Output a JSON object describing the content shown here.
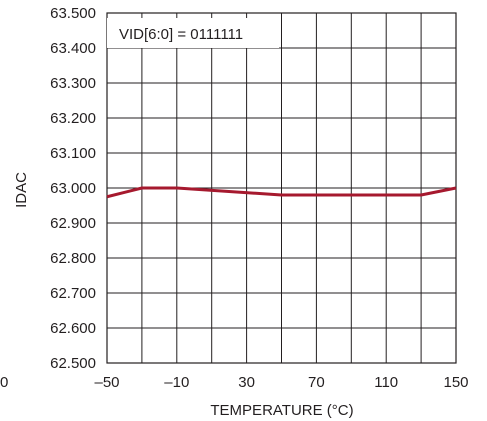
{
  "chart_data": {
    "type": "line",
    "title": "",
    "xlabel": "TEMPERATURE (°C)",
    "ylabel": "IDAC",
    "annotation": "VID[6:0] = 0111111",
    "grid": true,
    "legend": "none",
    "xlim": [
      -50,
      150
    ],
    "ylim": [
      62.5,
      63.5
    ],
    "x_ticks": [
      -50,
      -30,
      -10,
      10,
      30,
      50,
      70,
      90,
      110,
      130,
      150
    ],
    "x_tick_labels": [
      "–50",
      "",
      "–10",
      "",
      "30",
      "",
      "70",
      "",
      "110",
      "",
      "150"
    ],
    "y_ticks": [
      62.5,
      62.6,
      62.7,
      62.8,
      62.9,
      63.0,
      63.1,
      63.2,
      63.3,
      63.4,
      63.5
    ],
    "y_tick_labels": [
      "62.500",
      "62.600",
      "62.700",
      "62.800",
      "62.900",
      "63.000",
      "63.100",
      "63.200",
      "63.300",
      "63.400",
      "63.500"
    ],
    "clipped_label": "0",
    "series": [
      {
        "color": "#a6192e",
        "x": [
          -50,
          -30,
          -10,
          50,
          70,
          90,
          110,
          130,
          150
        ],
        "y": [
          62.975,
          63.0,
          63.0,
          62.98,
          62.98,
          62.98,
          62.98,
          62.98,
          63.0
        ]
      }
    ]
  }
}
